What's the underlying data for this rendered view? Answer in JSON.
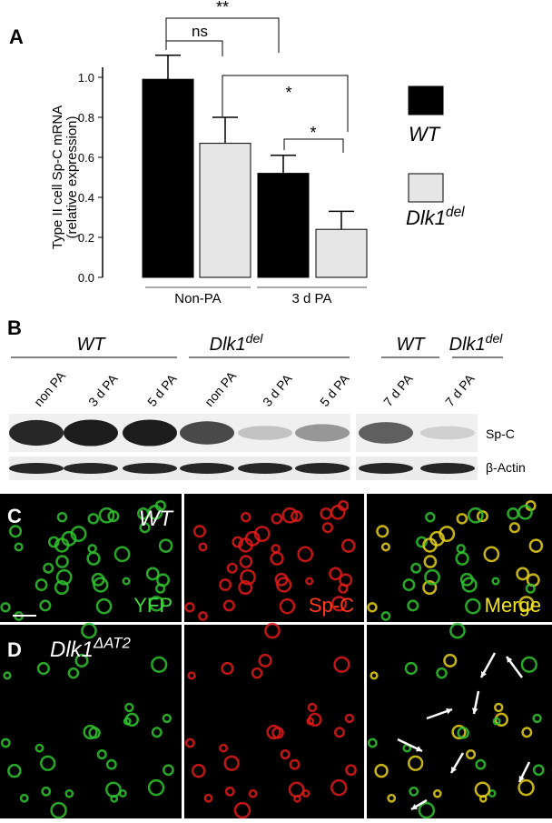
{
  "chart_data": {
    "type": "bar",
    "panel": "A",
    "y_label": [
      "Type II cell Sp-C mRNA",
      "(relative expression)"
    ],
    "categories": [
      "Non-PA",
      "3 d PA"
    ],
    "series": [
      {
        "name": "WT",
        "color": "#000000",
        "values": [
          0.99,
          0.52
        ],
        "errors": [
          0.12,
          0.09
        ]
      },
      {
        "name": "Dlk1",
        "name_superscript": "del",
        "color": "#e6e6e6",
        "values": [
          0.67,
          0.24
        ],
        "errors": [
          0.13,
          0.09
        ]
      }
    ],
    "ylim": [
      0,
      1.05
    ],
    "yticks": [
      {
        "value": 0,
        "label": "0.0"
      },
      0.2,
      0.4,
      0.6,
      0.8,
      {
        "value": 1,
        "label": "1.0"
      }
    ],
    "annotations": [
      "ns",
      "**",
      "*",
      "*"
    ]
  },
  "panel_b": {
    "label": "B",
    "groups": [
      {
        "name": "WT"
      },
      {
        "name": "Dlk1",
        "superscript": "del"
      },
      {
        "name": "WT"
      },
      {
        "name": "Dlk1",
        "superscript": "del"
      }
    ],
    "lanes": [
      "non PA",
      "3 d PA",
      "5 d PA",
      "non PA",
      "3 d PA",
      "5 d PA",
      "7 d PA",
      "7 d PA"
    ],
    "rows": [
      "Sp-C",
      "β-Actin"
    ]
  },
  "panel_c": {
    "label": "C",
    "genotype": "WT",
    "channels": [
      "YFP",
      "Sp-C",
      "Merge"
    ]
  },
  "panel_d": {
    "label": "D",
    "genotype": "Dlk1",
    "genotype_superscript": "ΔAT2"
  }
}
